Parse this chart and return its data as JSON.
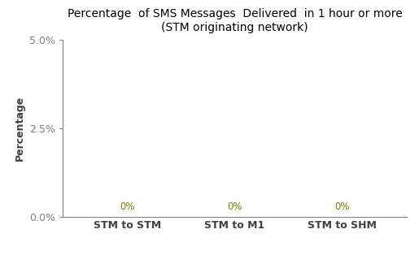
{
  "title_line1": "Percentage  of SMS Messages  Delivered  in 1 hour or more",
  "title_line2": "(STM originating network)",
  "categories": [
    "STM to STM",
    "STM to M1",
    "STM to SHM"
  ],
  "values": [
    0.0,
    0.0,
    0.0
  ],
  "ylabel": "Percentage",
  "ylim": [
    0.0,
    0.05
  ],
  "yticks": [
    0.0,
    0.025,
    0.05
  ],
  "ytick_labels": [
    "0.0%",
    "2.5%",
    "5.0%"
  ],
  "annotation_color": "#808000",
  "annotation_labels": [
    "0%",
    "0%",
    "0%"
  ],
  "background_color": "#ffffff",
  "title_fontsize": 10,
  "axis_label_fontsize": 9,
  "tick_fontsize": 9,
  "annotation_fontsize": 8.5,
  "spine_color": "#808080",
  "text_color": "#404040"
}
